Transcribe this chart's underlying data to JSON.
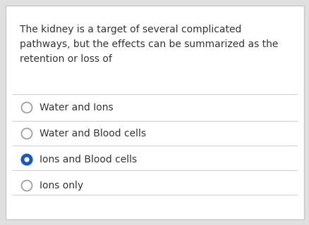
{
  "question_text": "The kidney is a target of several complicated\npathways, but the effects can be summarized as the\nretention or loss of",
  "options": [
    {
      "label": "Water and Ions",
      "selected": false
    },
    {
      "label": "Water and Blood cells",
      "selected": false
    },
    {
      "label": "Ions and Blood cells",
      "selected": true
    },
    {
      "label": "Ions only",
      "selected": false
    }
  ],
  "bg_color": "#ffffff",
  "border_color": "#c8c8c8",
  "outer_bg": "#e0e0e0",
  "text_color": "#333333",
  "separator_color": "#d0d0d0",
  "radio_unselected_edge": "#999999",
  "radio_selected_fill": "#1a56c4",
  "radio_selected_inner": "#ffffff",
  "question_fontsize": 10.0,
  "option_fontsize": 10.0
}
